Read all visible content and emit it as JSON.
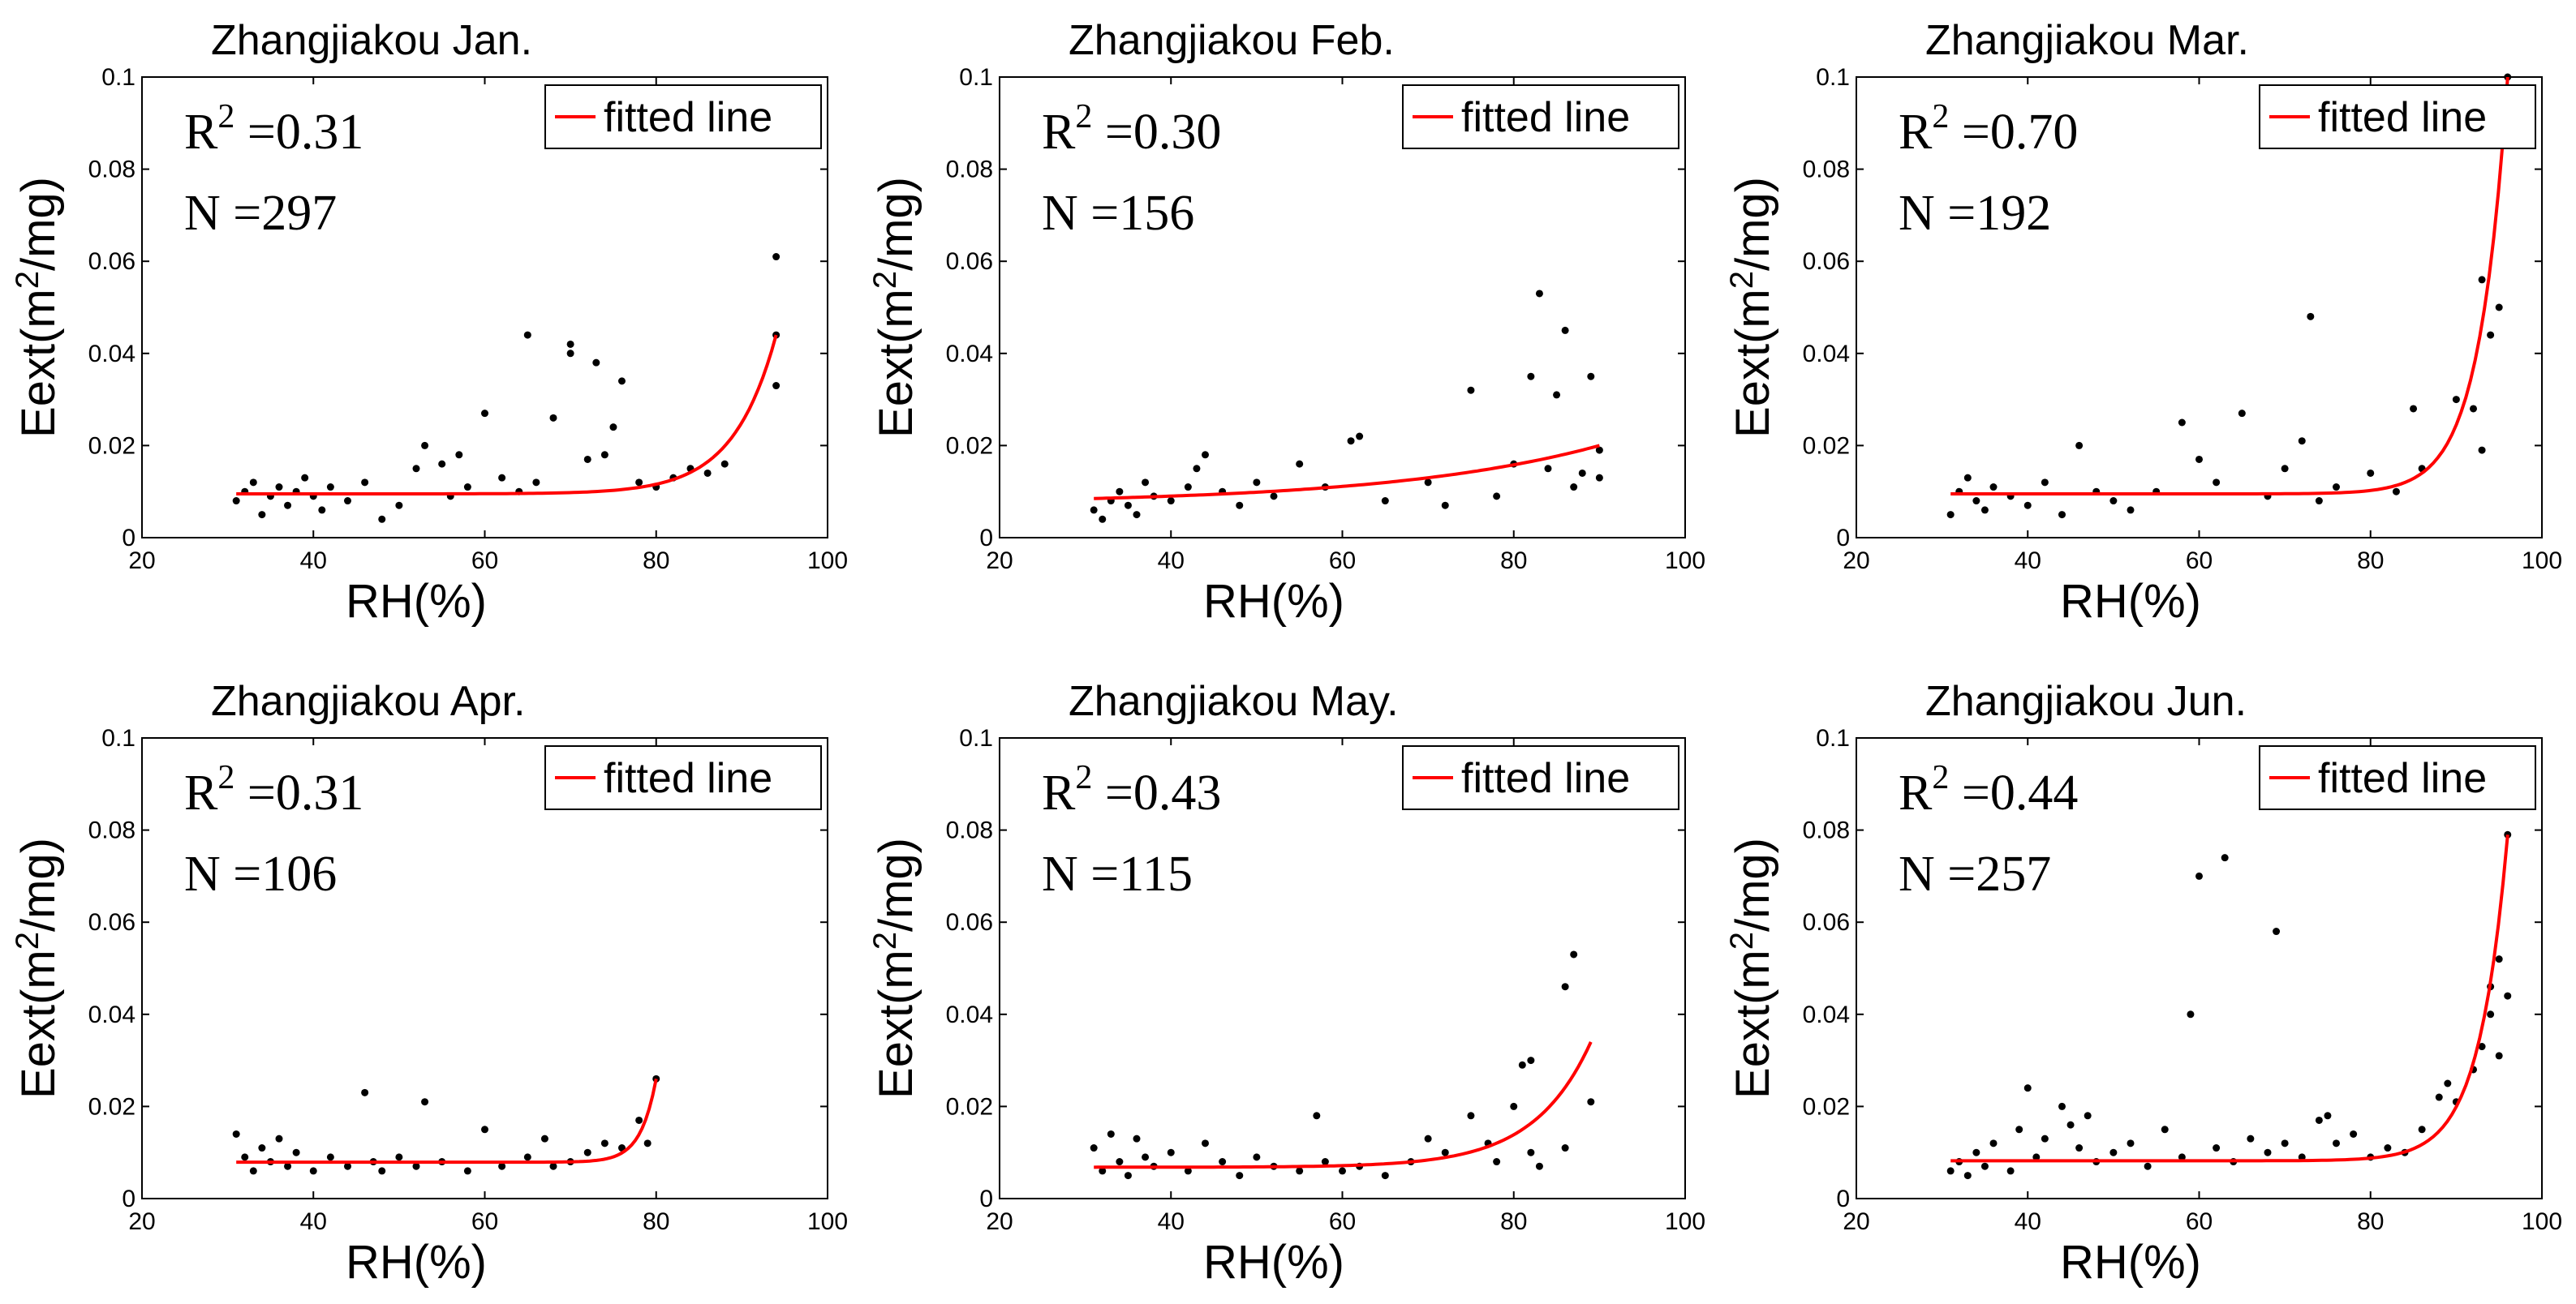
{
  "chart_data": [
    {
      "type": "scatter",
      "title": "Zhangjiakou  Jan.",
      "xlabel": "RH(%)",
      "ylabel": "Eext(m2/mg)",
      "xlim": [
        20,
        100
      ],
      "ylim": [
        0,
        0.1
      ],
      "xticks": [
        "20",
        "40",
        "60",
        "80",
        "100"
      ],
      "yticks": [
        "0",
        "0.02",
        "0.04",
        "0.06",
        "0.08",
        "0.1"
      ],
      "stats": {
        "r2_label": "R",
        "r2_value": "=0.31",
        "n_label": "N =297"
      },
      "legend": "fitted line",
      "points": [
        [
          31,
          0.008
        ],
        [
          32,
          0.01
        ],
        [
          33,
          0.012
        ],
        [
          34,
          0.005
        ],
        [
          35,
          0.009
        ],
        [
          36,
          0.011
        ],
        [
          37,
          0.007
        ],
        [
          38,
          0.01
        ],
        [
          39,
          0.013
        ],
        [
          40,
          0.009
        ],
        [
          41,
          0.006
        ],
        [
          42,
          0.011
        ],
        [
          44,
          0.008
        ],
        [
          46,
          0.012
        ],
        [
          48,
          0.004
        ],
        [
          50,
          0.007
        ],
        [
          52,
          0.015
        ],
        [
          53,
          0.02
        ],
        [
          55,
          0.016
        ],
        [
          56,
          0.009
        ],
        [
          57,
          0.018
        ],
        [
          58,
          0.011
        ],
        [
          60,
          0.027
        ],
        [
          62,
          0.013
        ],
        [
          64,
          0.01
        ],
        [
          65,
          0.044
        ],
        [
          66,
          0.012
        ],
        [
          68,
          0.026
        ],
        [
          70,
          0.042
        ],
        [
          70,
          0.04
        ],
        [
          72,
          0.017
        ],
        [
          73,
          0.038
        ],
        [
          74,
          0.018
        ],
        [
          75,
          0.024
        ],
        [
          76,
          0.034
        ],
        [
          78,
          0.012
        ],
        [
          80,
          0.011
        ],
        [
          82,
          0.013
        ],
        [
          84,
          0.015
        ],
        [
          86,
          0.014
        ],
        [
          88,
          0.016
        ],
        [
          94,
          0.061
        ],
        [
          94,
          0.044
        ],
        [
          94,
          0.033
        ]
      ],
      "fit": {
        "x0": 31,
        "x1": 94,
        "base": 0.0095,
        "amp": 0.0345,
        "k": 0.2
      }
    },
    {
      "type": "scatter",
      "title": "Zhangjiakou  Feb.",
      "xlabel": "RH(%)",
      "ylabel": "Eext(m2/mg)",
      "xlim": [
        20,
        100
      ],
      "ylim": [
        0,
        0.1
      ],
      "xticks": [
        "20",
        "40",
        "60",
        "80",
        "100"
      ],
      "yticks": [
        "0",
        "0.02",
        "0.04",
        "0.06",
        "0.08",
        "0.1"
      ],
      "stats": {
        "r2_label": "R",
        "r2_value": "=0.30",
        "n_label": "N =156"
      },
      "legend": "fitted line",
      "points": [
        [
          31,
          0.006
        ],
        [
          32,
          0.004
        ],
        [
          33,
          0.008
        ],
        [
          34,
          0.01
        ],
        [
          35,
          0.007
        ],
        [
          36,
          0.005
        ],
        [
          37,
          0.012
        ],
        [
          38,
          0.009
        ],
        [
          40,
          0.008
        ],
        [
          42,
          0.011
        ],
        [
          43,
          0.015
        ],
        [
          44,
          0.018
        ],
        [
          46,
          0.01
        ],
        [
          48,
          0.007
        ],
        [
          50,
          0.012
        ],
        [
          52,
          0.009
        ],
        [
          55,
          0.016
        ],
        [
          58,
          0.011
        ],
        [
          61,
          0.021
        ],
        [
          62,
          0.022
        ],
        [
          65,
          0.008
        ],
        [
          70,
          0.012
        ],
        [
          72,
          0.007
        ],
        [
          75,
          0.032
        ],
        [
          78,
          0.009
        ],
        [
          80,
          0.016
        ],
        [
          82,
          0.035
        ],
        [
          83,
          0.053
        ],
        [
          84,
          0.015
        ],
        [
          85,
          0.031
        ],
        [
          86,
          0.045
        ],
        [
          87,
          0.011
        ],
        [
          88,
          0.014
        ],
        [
          89,
          0.035
        ],
        [
          90,
          0.013
        ],
        [
          90,
          0.019
        ]
      ],
      "fit": {
        "x0": 31,
        "x1": 90,
        "base": 0.0073,
        "amp": 0.0127,
        "k": 0.04
      }
    },
    {
      "type": "scatter",
      "title": "Zhangjiakou  Mar.",
      "xlabel": "RH(%)",
      "ylabel": "Eext(m2/mg)",
      "xlim": [
        20,
        100
      ],
      "ylim": [
        0,
        0.1
      ],
      "xticks": [
        "20",
        "40",
        "60",
        "80",
        "100"
      ],
      "yticks": [
        "0",
        "0.02",
        "0.04",
        "0.06",
        "0.08",
        "0.1"
      ],
      "stats": {
        "r2_label": "R",
        "r2_value": "=0.70",
        "n_label": "N =192"
      },
      "legend": "fitted line",
      "points": [
        [
          31,
          0.005
        ],
        [
          32,
          0.01
        ],
        [
          33,
          0.013
        ],
        [
          34,
          0.008
        ],
        [
          35,
          0.006
        ],
        [
          36,
          0.011
        ],
        [
          38,
          0.009
        ],
        [
          40,
          0.007
        ],
        [
          42,
          0.012
        ],
        [
          44,
          0.005
        ],
        [
          46,
          0.02
        ],
        [
          48,
          0.01
        ],
        [
          50,
          0.008
        ],
        [
          52,
          0.006
        ],
        [
          55,
          0.01
        ],
        [
          58,
          0.025
        ],
        [
          60,
          0.017
        ],
        [
          62,
          0.012
        ],
        [
          65,
          0.027
        ],
        [
          68,
          0.009
        ],
        [
          70,
          0.015
        ],
        [
          72,
          0.021
        ],
        [
          73,
          0.048
        ],
        [
          74,
          0.008
        ],
        [
          76,
          0.011
        ],
        [
          80,
          0.014
        ],
        [
          83,
          0.01
        ],
        [
          85,
          0.028
        ],
        [
          86,
          0.015
        ],
        [
          90,
          0.03
        ],
        [
          92,
          0.028
        ],
        [
          93,
          0.019
        ],
        [
          93,
          0.056
        ],
        [
          94,
          0.044
        ],
        [
          95,
          0.05
        ],
        [
          96,
          0.089
        ],
        [
          96,
          0.1
        ]
      ],
      "fit": {
        "x0": 31,
        "x1": 96,
        "base": 0.0095,
        "amp": 0.0905,
        "k": 0.3
      }
    },
    {
      "type": "scatter",
      "title": "Zhangjiakou  Apr.",
      "xlabel": "RH(%)",
      "ylabel": "Eext(m2/mg)",
      "xlim": [
        20,
        100
      ],
      "ylim": [
        0,
        0.1
      ],
      "xticks": [
        "20",
        "40",
        "60",
        "80",
        "100"
      ],
      "yticks": [
        "0",
        "0.02",
        "0.04",
        "0.06",
        "0.08",
        "0.1"
      ],
      "stats": {
        "r2_label": "R",
        "r2_value": "=0.31",
        "n_label": "N =106"
      },
      "legend": "fitted line",
      "points": [
        [
          31,
          0.014
        ],
        [
          32,
          0.009
        ],
        [
          33,
          0.006
        ],
        [
          34,
          0.011
        ],
        [
          35,
          0.008
        ],
        [
          36,
          0.013
        ],
        [
          37,
          0.007
        ],
        [
          38,
          0.01
        ],
        [
          40,
          0.006
        ],
        [
          42,
          0.009
        ],
        [
          44,
          0.007
        ],
        [
          46,
          0.023
        ],
        [
          47,
          0.008
        ],
        [
          48,
          0.006
        ],
        [
          50,
          0.009
        ],
        [
          52,
          0.007
        ],
        [
          53,
          0.021
        ],
        [
          55,
          0.008
        ],
        [
          58,
          0.006
        ],
        [
          60,
          0.015
        ],
        [
          62,
          0.007
        ],
        [
          65,
          0.009
        ],
        [
          67,
          0.013
        ],
        [
          68,
          0.007
        ],
        [
          70,
          0.008
        ],
        [
          72,
          0.01
        ],
        [
          74,
          0.012
        ],
        [
          76,
          0.011
        ],
        [
          78,
          0.017
        ],
        [
          79,
          0.012
        ],
        [
          80,
          0.026
        ]
      ],
      "fit": {
        "x0": 31,
        "x1": 80,
        "base": 0.0079,
        "amp": 0.0181,
        "k": 0.55
      }
    },
    {
      "type": "scatter",
      "title": "Zhangjiakou  May.",
      "xlabel": "RH(%)",
      "ylabel": "Eext(m2/mg)",
      "xlim": [
        20,
        100
      ],
      "ylim": [
        0,
        0.1
      ],
      "xticks": [
        "20",
        "40",
        "60",
        "80",
        "100"
      ],
      "yticks": [
        "0",
        "0.02",
        "0.04",
        "0.06",
        "0.08",
        "0.1"
      ],
      "stats": {
        "r2_label": "R",
        "r2_value": "=0.43",
        "n_label": "N =115"
      },
      "legend": "fitted line",
      "points": [
        [
          31,
          0.011
        ],
        [
          32,
          0.006
        ],
        [
          33,
          0.014
        ],
        [
          34,
          0.008
        ],
        [
          35,
          0.005
        ],
        [
          36,
          0.013
        ],
        [
          37,
          0.009
        ],
        [
          38,
          0.007
        ],
        [
          40,
          0.01
        ],
        [
          42,
          0.006
        ],
        [
          44,
          0.012
        ],
        [
          46,
          0.008
        ],
        [
          48,
          0.005
        ],
        [
          50,
          0.009
        ],
        [
          52,
          0.007
        ],
        [
          55,
          0.006
        ],
        [
          57,
          0.018
        ],
        [
          58,
          0.008
        ],
        [
          60,
          0.006
        ],
        [
          62,
          0.007
        ],
        [
          65,
          0.005
        ],
        [
          68,
          0.008
        ],
        [
          70,
          0.013
        ],
        [
          72,
          0.01
        ],
        [
          75,
          0.018
        ],
        [
          77,
          0.012
        ],
        [
          78,
          0.008
        ],
        [
          80,
          0.02
        ],
        [
          81,
          0.029
        ],
        [
          82,
          0.03
        ],
        [
          82,
          0.01
        ],
        [
          83,
          0.007
        ],
        [
          86,
          0.046
        ],
        [
          86,
          0.011
        ],
        [
          87,
          0.053
        ],
        [
          89,
          0.021
        ]
      ],
      "fit": {
        "x0": 31,
        "x1": 89,
        "base": 0.0068,
        "amp": 0.0272,
        "k": 0.15
      }
    },
    {
      "type": "scatter",
      "title": "Zhangjiakou  Jun.",
      "xlabel": "RH(%)",
      "ylabel": "Eext(m2/mg)",
      "xlim": [
        20,
        100
      ],
      "ylim": [
        0,
        0.1
      ],
      "xticks": [
        "20",
        "40",
        "60",
        "80",
        "100"
      ],
      "yticks": [
        "0",
        "0.02",
        "0.04",
        "0.06",
        "0.08",
        "0.1"
      ],
      "stats": {
        "r2_label": "R",
        "r2_value": "=0.44",
        "n_label": "N =257"
      },
      "legend": "fitted line",
      "points": [
        [
          31,
          0.006
        ],
        [
          32,
          0.008
        ],
        [
          33,
          0.005
        ],
        [
          34,
          0.01
        ],
        [
          35,
          0.007
        ],
        [
          36,
          0.012
        ],
        [
          38,
          0.006
        ],
        [
          39,
          0.015
        ],
        [
          40,
          0.024
        ],
        [
          41,
          0.009
        ],
        [
          42,
          0.013
        ],
        [
          44,
          0.02
        ],
        [
          45,
          0.016
        ],
        [
          46,
          0.011
        ],
        [
          47,
          0.018
        ],
        [
          48,
          0.008
        ],
        [
          50,
          0.01
        ],
        [
          52,
          0.012
        ],
        [
          54,
          0.007
        ],
        [
          56,
          0.015
        ],
        [
          58,
          0.009
        ],
        [
          59,
          0.04
        ],
        [
          60,
          0.07
        ],
        [
          62,
          0.011
        ],
        [
          63,
          0.074
        ],
        [
          64,
          0.008
        ],
        [
          66,
          0.013
        ],
        [
          68,
          0.01
        ],
        [
          69,
          0.058
        ],
        [
          70,
          0.012
        ],
        [
          72,
          0.009
        ],
        [
          74,
          0.017
        ],
        [
          75,
          0.018
        ],
        [
          76,
          0.012
        ],
        [
          78,
          0.014
        ],
        [
          80,
          0.009
        ],
        [
          82,
          0.011
        ],
        [
          84,
          0.01
        ],
        [
          86,
          0.015
        ],
        [
          88,
          0.022
        ],
        [
          89,
          0.025
        ],
        [
          90,
          0.021
        ],
        [
          92,
          0.028
        ],
        [
          93,
          0.033
        ],
        [
          94,
          0.04
        ],
        [
          94,
          0.046
        ],
        [
          95,
          0.052
        ],
        [
          95,
          0.031
        ],
        [
          96,
          0.044
        ],
        [
          96,
          0.079
        ]
      ],
      "fit": {
        "x0": 31,
        "x1": 96,
        "base": 0.0082,
        "amp": 0.0708,
        "k": 0.3
      }
    }
  ]
}
